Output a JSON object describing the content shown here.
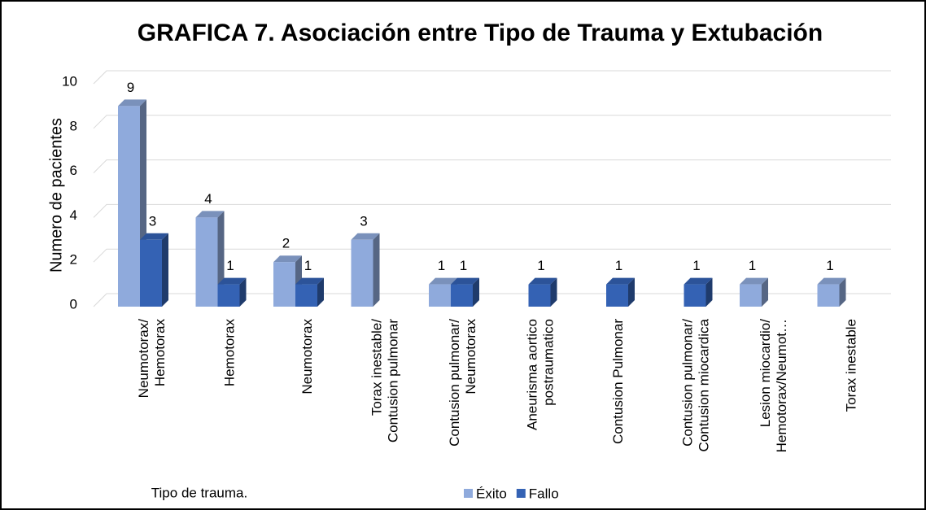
{
  "chart_data": {
    "type": "bar3d",
    "title": "GRAFICA 7. Asociación entre Tipo de Trauma y Extubación",
    "x_label": "Tipo de trauma.",
    "y_label": "Numero de pacientes",
    "categories": [
      "Neumotorax/\nHemotorax",
      "Hemotorax",
      "Neumotorax",
      "Torax inestable/\nContusion pulmonar",
      "Contusion pulmonar/\nNeumotorax",
      "Aneurisma aortico\npostraumatico",
      "Contusion Pulmonar",
      "Contusion pulmonar/\nContusion miocardica",
      "Lesion miocardio/\nHemotorax/Neumot…",
      "Torax inestable"
    ],
    "series": [
      {
        "name": "Éxito",
        "color": "#8faadc",
        "values": [
          9,
          4,
          2,
          3,
          1,
          null,
          null,
          null,
          1,
          1
        ]
      },
      {
        "name": "Fallo",
        "color": "#3462b4",
        "values": [
          3,
          1,
          1,
          null,
          1,
          1,
          1,
          1,
          null,
          null
        ]
      }
    ],
    "ylim": [
      0,
      10
    ],
    "yticks": [
      0,
      2,
      4,
      6,
      8,
      10
    ],
    "grid": true,
    "legend": "bottom"
  }
}
